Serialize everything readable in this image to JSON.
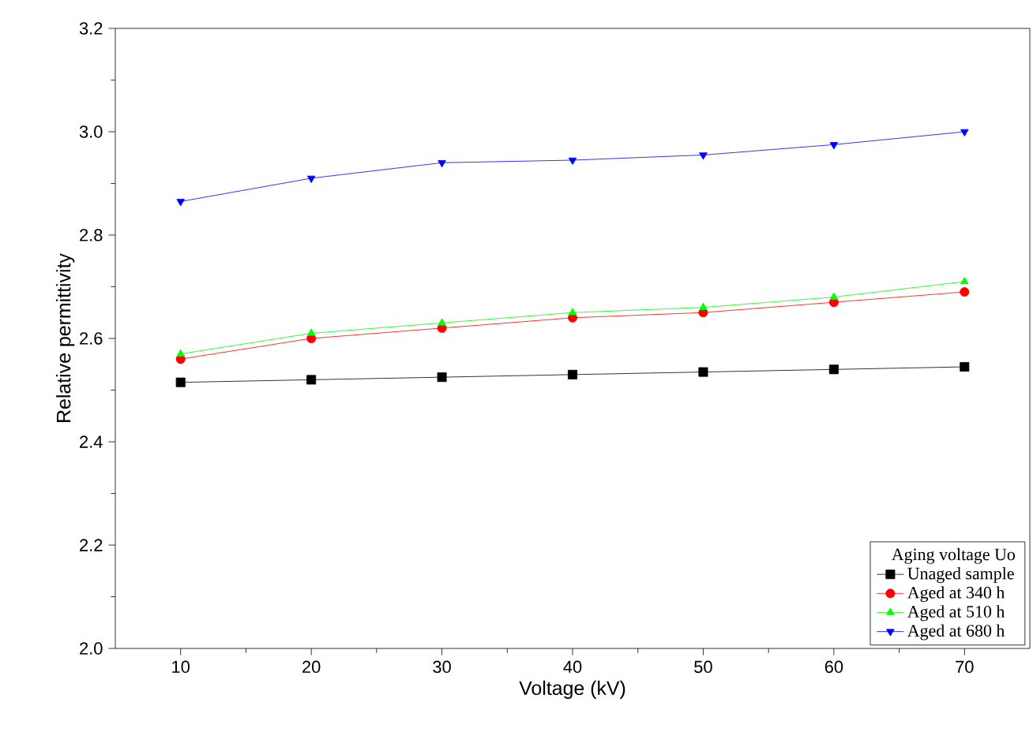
{
  "chart_data": {
    "type": "line",
    "xlabel": "Voltage (kV)",
    "ylabel": "Relative permittivity",
    "legend_title": "Aging voltage Uo",
    "x": [
      10,
      20,
      30,
      40,
      50,
      60,
      70
    ],
    "series": [
      {
        "name": "Unaged sample",
        "color": "#000000",
        "marker": "square",
        "values": [
          2.515,
          2.52,
          2.525,
          2.53,
          2.535,
          2.54,
          2.545
        ]
      },
      {
        "name": "Aged at 340 h",
        "color": "#ff0000",
        "marker": "circle",
        "values": [
          2.56,
          2.6,
          2.62,
          2.64,
          2.65,
          2.67,
          2.69
        ]
      },
      {
        "name": "Aged at 510 h",
        "color": "#00ff00",
        "marker": "triangle",
        "values": [
          2.57,
          2.61,
          2.63,
          2.65,
          2.66,
          2.68,
          2.71
        ]
      },
      {
        "name": "Aged at 680 h",
        "color": "#0000ff",
        "marker": "triangle-down",
        "values": [
          2.865,
          2.91,
          2.94,
          2.945,
          2.955,
          2.975,
          3.0
        ]
      }
    ],
    "xlim": [
      5,
      75
    ],
    "xticks": [
      10,
      20,
      30,
      40,
      50,
      60,
      70
    ],
    "ylim": [
      2.0,
      3.2
    ],
    "yticks": [
      {
        "value": 2.0,
        "label": "2.0"
      },
      {
        "value": 2.2,
        "label": "2.2"
      },
      {
        "value": 2.4,
        "label": "2.4"
      },
      {
        "value": 2.6,
        "label": "2.6"
      },
      {
        "value": 2.8,
        "label": "2.8"
      },
      {
        "value": 3.0,
        "label": "3.0"
      },
      {
        "value": 3.2,
        "label": "3.2"
      }
    ],
    "grid": false,
    "legend": "bottom right",
    "line_style": "solid"
  }
}
